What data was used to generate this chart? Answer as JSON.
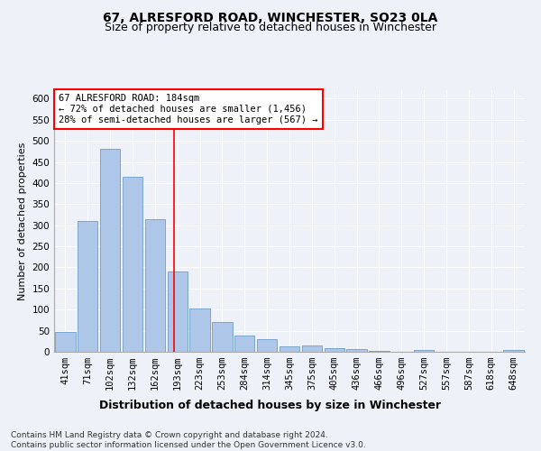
{
  "title": "67, ALRESFORD ROAD, WINCHESTER, SO23 0LA",
  "subtitle": "Size of property relative to detached houses in Winchester",
  "xlabel": "Distribution of detached houses by size in Winchester",
  "ylabel": "Number of detached properties",
  "categories": [
    "41sqm",
    "71sqm",
    "102sqm",
    "132sqm",
    "162sqm",
    "193sqm",
    "223sqm",
    "253sqm",
    "284sqm",
    "314sqm",
    "345sqm",
    "375sqm",
    "405sqm",
    "436sqm",
    "466sqm",
    "496sqm",
    "527sqm",
    "557sqm",
    "587sqm",
    "618sqm",
    "648sqm"
  ],
  "values": [
    47,
    311,
    480,
    414,
    315,
    190,
    103,
    70,
    38,
    31,
    12,
    14,
    9,
    6,
    3,
    0,
    5,
    0,
    0,
    0,
    4
  ],
  "bar_color": "#aec6e8",
  "bar_edge_color": "#5a8fc0",
  "vline_x": 4.85,
  "vline_color": "red",
  "annotation_text": "67 ALRESFORD ROAD: 184sqm\n← 72% of detached houses are smaller (1,456)\n28% of semi-detached houses are larger (567) →",
  "annotation_box_color": "white",
  "annotation_box_edge_color": "red",
  "ylim": [
    0,
    620
  ],
  "yticks": [
    0,
    50,
    100,
    150,
    200,
    250,
    300,
    350,
    400,
    450,
    500,
    550,
    600
  ],
  "footnote": "Contains HM Land Registry data © Crown copyright and database right 2024.\nContains public sector information licensed under the Open Government Licence v3.0.",
  "background_color": "#eef2f8",
  "grid_color": "white",
  "title_fontsize": 10,
  "subtitle_fontsize": 9,
  "xlabel_fontsize": 9,
  "ylabel_fontsize": 8,
  "tick_fontsize": 7.5,
  "footnote_fontsize": 6.5,
  "annot_fontsize": 7.5
}
